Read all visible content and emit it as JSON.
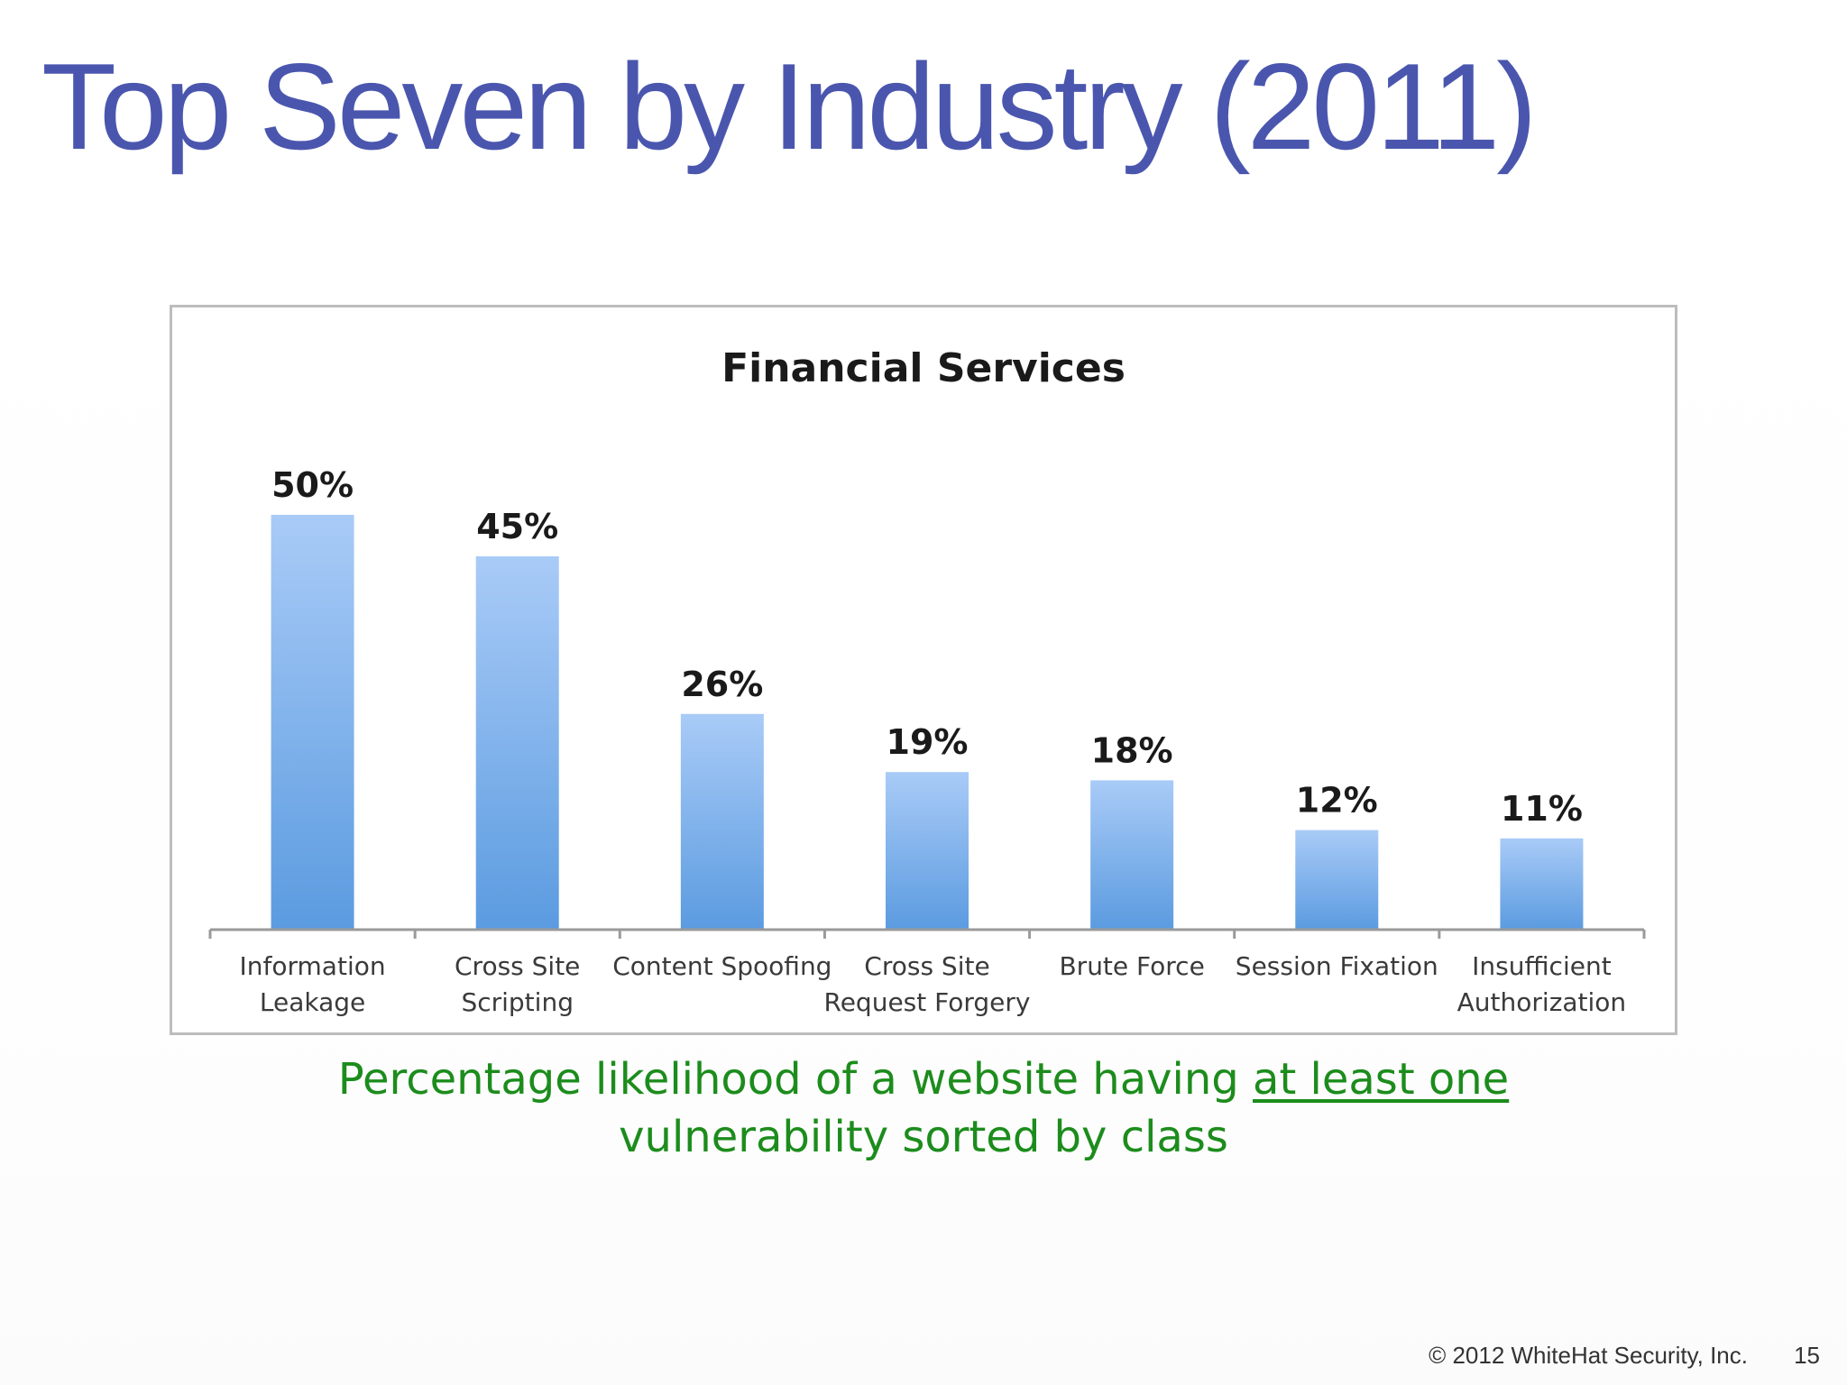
{
  "slide": {
    "title": "Top Seven by Industry (2011)",
    "caption_part1": "Percentage likelihood of a website having ",
    "caption_emphasis": "at least one",
    "caption_part2": "vulnerability sorted by class",
    "copyright": "© 2012 WhiteHat Security, Inc.",
    "page_number": "15"
  },
  "colors": {
    "title": "#4a56ae",
    "caption": "#1c8c1c",
    "bar_top": "#a9cbf7",
    "bar_bottom": "#5b9be0"
  },
  "chart_data": {
    "type": "bar",
    "title": "Financial Services",
    "categories": [
      [
        "Information",
        "Leakage"
      ],
      [
        "Cross Site",
        "Scripting"
      ],
      [
        "Content Spoofing"
      ],
      [
        "Cross Site",
        "Request Forgery"
      ],
      [
        "Brute Force"
      ],
      [
        "Session Fixation"
      ],
      [
        "Insufficient",
        "Authorization"
      ]
    ],
    "values": [
      50,
      45,
      26,
      19,
      18,
      12,
      11
    ],
    "value_labels": [
      "50%",
      "45%",
      "26%",
      "19%",
      "18%",
      "12%",
      "11%"
    ],
    "xlabel": "",
    "ylabel": "",
    "ylim": [
      0,
      50
    ],
    "grid": false,
    "legend": "none"
  }
}
